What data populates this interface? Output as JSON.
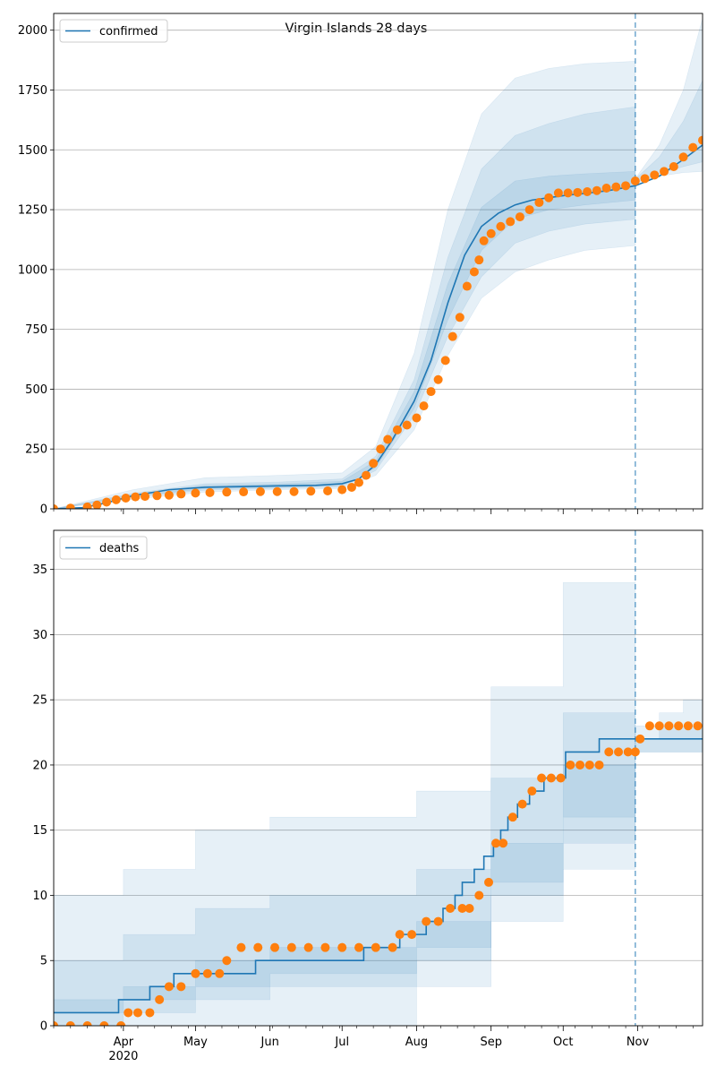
{
  "title": "Virgin Islands 28 days",
  "colors": {
    "line": "#1f77b4",
    "dots": "#ff7f0e",
    "band": "#1f77b4",
    "grid": "#b0b0b0",
    "vline": "#1f77b4"
  },
  "x_ticks": [
    "Apr",
    "May",
    "Jun",
    "Jul",
    "Aug",
    "Sep",
    "Oct",
    "Nov"
  ],
  "x_year_label": "2020",
  "chart_data": [
    {
      "type": "line",
      "legend": "confirmed",
      "legend_position": "upper-left",
      "grid": true,
      "x_range": [
        "2020-03-03",
        "2020-11-28"
      ],
      "ylim": [
        0,
        2070
      ],
      "y_ticks": [
        "0",
        "250",
        "500",
        "750",
        "1000",
        "1250",
        "1500",
        "1750",
        "2000"
      ],
      "forecast_start": "2020-10-31",
      "model_line": {
        "x": [
          "2020-03-03",
          "2020-03-15",
          "2020-03-25",
          "2020-04-05",
          "2020-04-20",
          "2020-05-05",
          "2020-05-20",
          "2020-06-05",
          "2020-06-20",
          "2020-07-01",
          "2020-07-08",
          "2020-07-15",
          "2020-07-22",
          "2020-07-31",
          "2020-08-07",
          "2020-08-14",
          "2020-08-21",
          "2020-08-28",
          "2020-09-04",
          "2020-09-11",
          "2020-09-18",
          "2020-09-25",
          "2020-10-02",
          "2020-10-10",
          "2020-10-20",
          "2020-10-31",
          "2020-11-10",
          "2020-11-20",
          "2020-11-28"
        ],
        "y": [
          0,
          5,
          25,
          55,
          80,
          90,
          93,
          96,
          98,
          105,
          125,
          185,
          290,
          450,
          620,
          860,
          1060,
          1180,
          1235,
          1270,
          1290,
          1300,
          1310,
          1318,
          1330,
          1350,
          1390,
          1460,
          1520
        ]
      },
      "bands": [
        {
          "x": [
            "2020-03-03",
            "2020-04-05",
            "2020-05-05",
            "2020-06-05",
            "2020-07-01",
            "2020-07-15",
            "2020-07-31",
            "2020-08-14",
            "2020-08-28",
            "2020-09-11",
            "2020-09-25",
            "2020-10-10",
            "2020-10-31"
          ],
          "lower": [
            0,
            40,
            70,
            80,
            85,
            140,
            330,
            640,
            880,
            990,
            1040,
            1080,
            1100
          ],
          "upper": [
            0,
            80,
            130,
            140,
            150,
            260,
            650,
            1250,
            1650,
            1800,
            1840,
            1860,
            1870
          ]
        },
        {
          "x": [
            "2020-03-03",
            "2020-04-05",
            "2020-05-05",
            "2020-06-05",
            "2020-07-01",
            "2020-07-15",
            "2020-07-31",
            "2020-08-14",
            "2020-08-28",
            "2020-09-11",
            "2020-09-25",
            "2020-10-10",
            "2020-10-31"
          ],
          "lower": [
            0,
            48,
            78,
            86,
            92,
            160,
            390,
            720,
            970,
            1110,
            1160,
            1190,
            1210
          ],
          "upper": [
            0,
            65,
            105,
            112,
            125,
            220,
            540,
            1050,
            1420,
            1560,
            1610,
            1650,
            1680
          ]
        },
        {
          "x": [
            "2020-03-03",
            "2020-04-05",
            "2020-05-05",
            "2020-06-05",
            "2020-07-01",
            "2020-07-15",
            "2020-07-31",
            "2020-08-14",
            "2020-08-28",
            "2020-09-11",
            "2020-09-25",
            "2020-10-10",
            "2020-10-31"
          ],
          "lower": [
            0,
            52,
            84,
            90,
            98,
            172,
            420,
            790,
            1080,
            1210,
            1250,
            1270,
            1290
          ],
          "upper": [
            0,
            60,
            98,
            104,
            115,
            200,
            490,
            940,
            1260,
            1370,
            1390,
            1400,
            1410
          ]
        },
        {
          "x": [
            "2020-10-31",
            "2020-11-10",
            "2020-11-20",
            "2020-11-28"
          ],
          "lower": [
            1360,
            1390,
            1405,
            1410
          ],
          "upper": [
            1380,
            1520,
            1750,
            2050
          ]
        },
        {
          "x": [
            "2020-10-31",
            "2020-11-10",
            "2020-11-20",
            "2020-11-28"
          ],
          "lower": [
            1362,
            1400,
            1430,
            1450
          ],
          "upper": [
            1378,
            1470,
            1620,
            1790
          ]
        }
      ],
      "observed": {
        "x": [
          "2020-03-03",
          "2020-03-10",
          "2020-03-17",
          "2020-03-21",
          "2020-03-25",
          "2020-03-29",
          "2020-04-02",
          "2020-04-06",
          "2020-04-10",
          "2020-04-15",
          "2020-04-20",
          "2020-04-25",
          "2020-05-01",
          "2020-05-07",
          "2020-05-14",
          "2020-05-21",
          "2020-05-28",
          "2020-06-04",
          "2020-06-11",
          "2020-06-18",
          "2020-06-25",
          "2020-07-01",
          "2020-07-05",
          "2020-07-08",
          "2020-07-11",
          "2020-07-14",
          "2020-07-17",
          "2020-07-20",
          "2020-07-24",
          "2020-07-28",
          "2020-08-01",
          "2020-08-04",
          "2020-08-07",
          "2020-08-10",
          "2020-08-13",
          "2020-08-16",
          "2020-08-19",
          "2020-08-22",
          "2020-08-25",
          "2020-08-27",
          "2020-08-29",
          "2020-09-01",
          "2020-09-05",
          "2020-09-09",
          "2020-09-13",
          "2020-09-17",
          "2020-09-21",
          "2020-09-25",
          "2020-09-29",
          "2020-10-03",
          "2020-10-07",
          "2020-10-11",
          "2020-10-15",
          "2020-10-19",
          "2020-10-23",
          "2020-10-27",
          "2020-10-31",
          "2020-11-04",
          "2020-11-08",
          "2020-11-12",
          "2020-11-16",
          "2020-11-20",
          "2020-11-24",
          "2020-11-28"
        ],
        "y": [
          0,
          3,
          8,
          16,
          28,
          38,
          45,
          50,
          52,
          55,
          57,
          62,
          66,
          68,
          70,
          71,
          72,
          72,
          72,
          74,
          75,
          80,
          90,
          110,
          140,
          190,
          250,
          290,
          330,
          350,
          380,
          430,
          490,
          540,
          620,
          720,
          800,
          930,
          990,
          1040,
          1120,
          1150,
          1180,
          1200,
          1220,
          1250,
          1280,
          1300,
          1320,
          1320,
          1322,
          1325,
          1330,
          1340,
          1345,
          1350,
          1370,
          1380,
          1395,
          1410,
          1430,
          1470,
          1510,
          1540
        ]
      }
    },
    {
      "type": "line",
      "legend": "deaths",
      "legend_position": "upper-left",
      "grid": true,
      "x_range": [
        "2020-03-03",
        "2020-11-28"
      ],
      "ylim": [
        0,
        38
      ],
      "y_ticks": [
        "0",
        "5",
        "10",
        "15",
        "20",
        "25",
        "30",
        "35"
      ],
      "forecast_start": "2020-10-31",
      "model_line": {
        "x": [
          "2020-03-03",
          "2020-03-30",
          "2020-04-12",
          "2020-04-22",
          "2020-05-15",
          "2020-05-26",
          "2020-07-10",
          "2020-07-25",
          "2020-08-05",
          "2020-08-12",
          "2020-08-17",
          "2020-08-20",
          "2020-08-25",
          "2020-08-29",
          "2020-09-02",
          "2020-09-05",
          "2020-09-08",
          "2020-09-12",
          "2020-09-17",
          "2020-09-23",
          "2020-10-02",
          "2020-10-16",
          "2020-11-15",
          "2020-11-28"
        ],
        "y": [
          1,
          2,
          3,
          4,
          4,
          5,
          6,
          7,
          8,
          9,
          10,
          11,
          12,
          13,
          14,
          15,
          16,
          17,
          18,
          19,
          21,
          22,
          22,
          22
        ]
      },
      "bands": [
        {
          "x": [
            "2020-03-03",
            "2020-04-01",
            "2020-05-01",
            "2020-06-01",
            "2020-07-01",
            "2020-08-01",
            "2020-09-01",
            "2020-10-01",
            "2020-10-31"
          ],
          "lower": [
            0,
            0,
            0,
            0,
            0,
            3,
            8,
            12,
            15
          ],
          "upper": [
            10,
            12,
            15,
            16,
            16,
            18,
            26,
            34,
            38
          ]
        },
        {
          "x": [
            "2020-03-03",
            "2020-04-01",
            "2020-05-01",
            "2020-06-01",
            "2020-07-01",
            "2020-08-01",
            "2020-09-01",
            "2020-10-01",
            "2020-10-31"
          ],
          "lower": [
            0,
            1,
            2,
            3,
            3,
            5,
            10,
            14,
            17
          ],
          "upper": [
            5,
            7,
            9,
            10,
            10,
            12,
            19,
            24,
            27
          ]
        },
        {
          "x": [
            "2020-03-03",
            "2020-04-01",
            "2020-05-01",
            "2020-06-01",
            "2020-07-01",
            "2020-08-01",
            "2020-09-01",
            "2020-10-01",
            "2020-10-31"
          ],
          "lower": [
            1,
            2,
            3,
            4,
            4,
            6,
            11,
            16,
            19
          ],
          "upper": [
            2,
            3,
            5,
            6,
            6,
            8,
            14,
            20,
            23
          ]
        },
        {
          "x": [
            "2020-10-31",
            "2020-11-10",
            "2020-11-20",
            "2020-11-28"
          ],
          "lower": [
            21,
            21,
            21,
            21
          ],
          "upper": [
            23,
            24,
            25,
            26
          ]
        },
        {
          "x": [
            "2020-10-31",
            "2020-11-10",
            "2020-11-20",
            "2020-11-28"
          ],
          "lower": [
            21,
            21,
            21,
            21
          ],
          "upper": [
            22,
            23,
            23,
            24
          ]
        }
      ],
      "observed": {
        "x": [
          "2020-03-03",
          "2020-03-10",
          "2020-03-17",
          "2020-03-24",
          "2020-03-31",
          "2020-04-03",
          "2020-04-07",
          "2020-04-12",
          "2020-04-16",
          "2020-04-20",
          "2020-04-25",
          "2020-05-01",
          "2020-05-06",
          "2020-05-11",
          "2020-05-14",
          "2020-05-20",
          "2020-05-27",
          "2020-06-03",
          "2020-06-10",
          "2020-06-17",
          "2020-06-24",
          "2020-07-01",
          "2020-07-08",
          "2020-07-15",
          "2020-07-22",
          "2020-07-25",
          "2020-07-30",
          "2020-08-05",
          "2020-08-10",
          "2020-08-15",
          "2020-08-20",
          "2020-08-23",
          "2020-08-27",
          "2020-08-31",
          "2020-09-03",
          "2020-09-06",
          "2020-09-10",
          "2020-09-14",
          "2020-09-18",
          "2020-09-22",
          "2020-09-26",
          "2020-09-30",
          "2020-10-04",
          "2020-10-08",
          "2020-10-12",
          "2020-10-16",
          "2020-10-20",
          "2020-10-24",
          "2020-10-28",
          "2020-10-31",
          "2020-11-02",
          "2020-11-06",
          "2020-11-10",
          "2020-11-14",
          "2020-11-18",
          "2020-11-22",
          "2020-11-26"
        ],
        "y": [
          0,
          0,
          0,
          0,
          0,
          1,
          1,
          1,
          2,
          3,
          3,
          4,
          4,
          4,
          5,
          6,
          6,
          6,
          6,
          6,
          6,
          6,
          6,
          6,
          6,
          7,
          7,
          8,
          8,
          9,
          9,
          9,
          10,
          11,
          14,
          14,
          16,
          17,
          18,
          19,
          19,
          19,
          20,
          20,
          20,
          20,
          21,
          21,
          21,
          21,
          22,
          23,
          23,
          23,
          23,
          23,
          23
        ]
      }
    }
  ]
}
